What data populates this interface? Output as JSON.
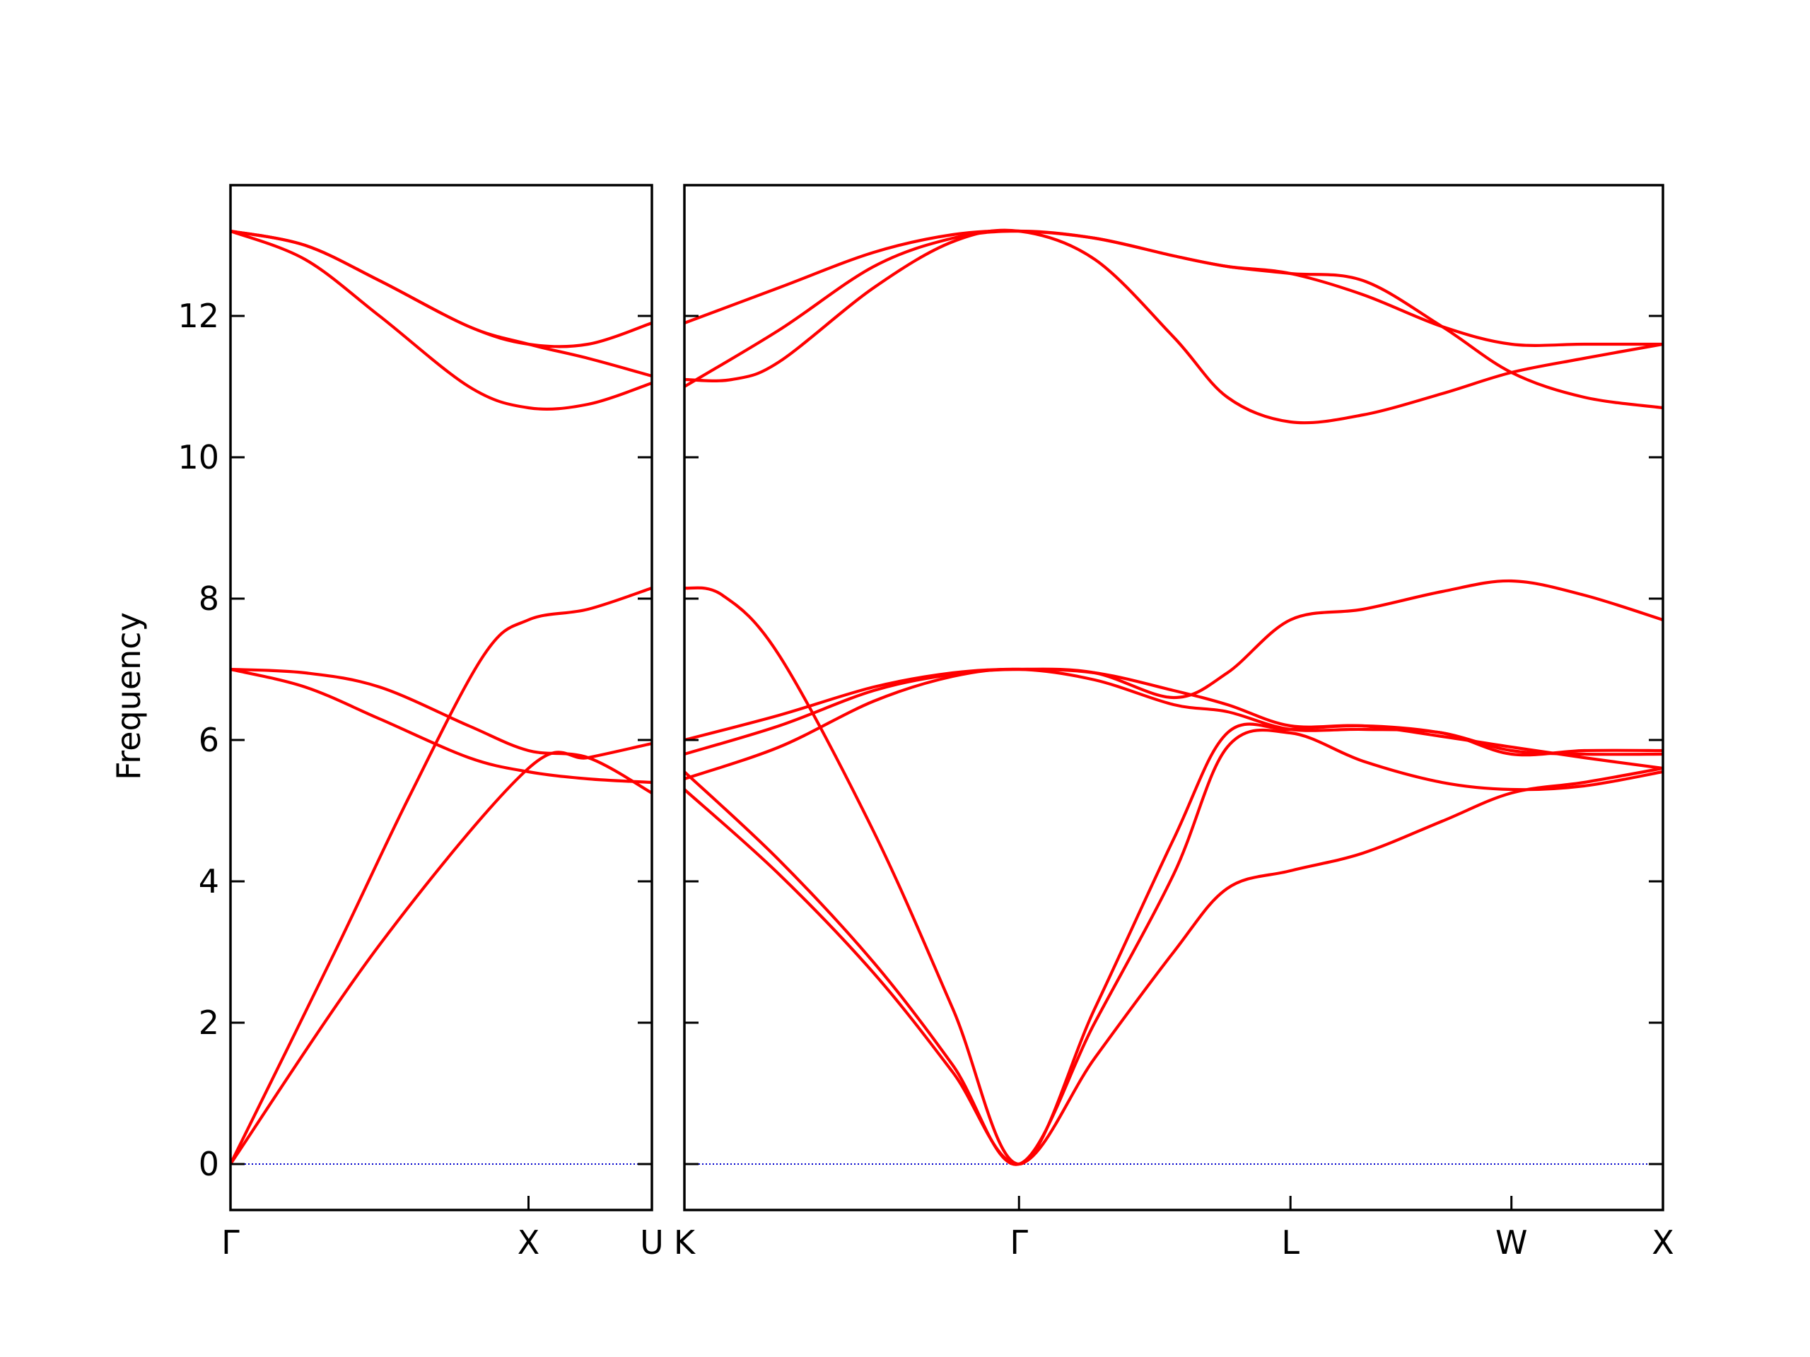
{
  "chart_data": {
    "type": "line",
    "title": "",
    "ylabel": "Frequency",
    "ylim": [
      -0.65,
      13.85
    ],
    "yticks": [
      0,
      2,
      4,
      6,
      8,
      10,
      12
    ],
    "grid": false,
    "legend": "none",
    "colors": {
      "band": "#ff0000",
      "zero_line": "#0000cc",
      "axes": "#000000"
    },
    "panels": [
      {
        "xrange": [
          0,
          1.414
        ],
        "ticks": [
          {
            "x": 0,
            "label": "Γ"
          },
          {
            "x": 1.0,
            "label": "X"
          },
          {
            "x": 1.414,
            "label": "U"
          }
        ],
        "bands": [
          {
            "x": [
              0,
              0.5,
              1.0,
              1.2,
              1.414
            ],
            "y": [
              0,
              3.1,
              5.6,
              5.75,
              5.95
            ]
          },
          {
            "x": [
              0,
              0.35,
              0.6,
              0.85,
              1.0,
              1.2,
              1.414
            ],
            "y": [
              0,
              3.0,
              5.2,
              7.2,
              7.7,
              7.85,
              8.15
            ]
          },
          {
            "x": [
              0,
              0.25,
              0.5,
              0.8,
              1.0,
              1.2,
              1.414
            ],
            "y": [
              7.0,
              6.75,
              6.3,
              5.75,
              5.55,
              5.45,
              5.4
            ]
          },
          {
            "x": [
              0,
              0.25,
              0.5,
              0.8,
              1.0,
              1.2,
              1.414
            ],
            "y": [
              7.0,
              6.95,
              6.75,
              6.2,
              5.85,
              5.75,
              5.25
            ]
          },
          {
            "x": [
              0,
              0.25,
              0.5,
              0.8,
              1.0,
              1.2,
              1.414
            ],
            "y": [
              13.2,
              12.8,
              12.0,
              11.0,
              10.7,
              10.75,
              11.05
            ]
          },
          {
            "x": [
              0,
              0.25,
              0.5,
              0.8,
              1.0,
              1.2,
              1.414
            ],
            "y": [
              13.2,
              13.0,
              12.5,
              11.85,
              11.6,
              11.6,
              11.9
            ]
          },
          {
            "x": [
              0,
              0.25,
              0.5,
              0.8,
              1.0,
              1.2,
              1.414
            ],
            "y": [
              13.2,
              13.0,
              12.5,
              11.85,
              11.6,
              11.4,
              11.15
            ]
          }
        ]
      },
      {
        "xrange": [
          0,
          3.1
        ],
        "ticks": [
          {
            "x": 0,
            "label": "K"
          },
          {
            "x": 1.06,
            "label": "Γ"
          },
          {
            "x": 1.92,
            "label": "L"
          },
          {
            "x": 2.62,
            "label": "W"
          },
          {
            "x": 3.1,
            "label": "X"
          }
        ],
        "bands": [
          {
            "x": [
              0,
              0.3,
              0.6,
              0.85,
              1.06,
              1.3,
              1.55,
              1.72,
              1.92,
              2.15,
              2.4,
              2.62,
              2.85,
              3.1
            ],
            "y": [
              5.3,
              4.1,
              2.7,
              1.3,
              0,
              1.5,
              3.0,
              3.9,
              4.15,
              4.4,
              4.85,
              5.25,
              5.4,
              5.6
            ]
          },
          {
            "x": [
              0,
              0.3,
              0.6,
              0.85,
              1.06,
              1.3,
              1.55,
              1.72,
              1.92,
              2.15,
              2.4,
              2.62,
              2.85,
              3.1
            ],
            "y": [
              5.55,
              4.3,
              2.85,
              1.4,
              0,
              2.0,
              4.1,
              5.9,
              6.1,
              5.7,
              5.4,
              5.3,
              5.35,
              5.55
            ]
          },
          {
            "x": [
              0,
              0.12,
              0.3,
              0.6,
              0.85,
              1.06,
              1.3,
              1.55,
              1.72,
              1.92,
              2.15,
              2.4,
              2.62,
              2.85,
              3.1
            ],
            "y": [
              8.15,
              8.05,
              7.2,
              4.7,
              2.2,
              0,
              2.2,
              4.6,
              6.1,
              6.15,
              6.2,
              6.1,
              5.85,
              5.8,
              5.8
            ]
          },
          {
            "x": [
              0,
              0.3,
              0.6,
              0.85,
              1.06,
              1.3,
              1.55,
              1.72,
              1.92,
              2.15,
              2.4,
              2.62,
              2.85,
              3.1
            ],
            "y": [
              5.45,
              5.9,
              6.55,
              6.9,
              7.0,
              6.85,
              6.5,
              6.4,
              6.15,
              6.15,
              6.1,
              5.8,
              5.85,
              5.85
            ]
          },
          {
            "x": [
              0,
              0.3,
              0.6,
              0.85,
              1.06,
              1.3,
              1.55,
              1.72,
              1.92,
              2.15,
              2.4,
              2.62,
              2.85,
              3.1
            ],
            "y": [
              5.8,
              6.2,
              6.7,
              6.93,
              7.0,
              6.95,
              6.6,
              6.95,
              7.7,
              7.85,
              8.1,
              8.25,
              8.05,
              7.7
            ]
          },
          {
            "x": [
              0,
              0.3,
              0.6,
              0.85,
              1.06,
              1.3,
              1.55,
              1.72,
              1.92,
              2.15,
              2.4,
              2.62,
              2.85,
              3.1
            ],
            "y": [
              6.0,
              6.35,
              6.75,
              6.95,
              7.0,
              6.95,
              6.7,
              6.5,
              6.2,
              6.2,
              6.05,
              5.9,
              5.75,
              5.6
            ]
          },
          {
            "x": [
              0,
              0.15,
              0.3,
              0.6,
              0.85,
              1.06,
              1.3,
              1.55,
              1.72,
              1.92,
              2.15,
              2.4,
              2.62,
              2.85,
              3.1
            ],
            "y": [
              11.1,
              11.1,
              11.35,
              12.4,
              13.05,
              13.2,
              12.8,
              11.7,
              10.85,
              10.5,
              10.6,
              10.9,
              11.2,
              11.4,
              11.6
            ]
          },
          {
            "x": [
              0,
              0.3,
              0.6,
              0.85,
              1.06,
              1.3,
              1.55,
              1.72,
              1.92,
              2.15,
              2.4,
              2.62,
              2.85,
              3.1
            ],
            "y": [
              11.0,
              11.8,
              12.7,
              13.1,
              13.2,
              13.1,
              12.85,
              12.7,
              12.6,
              12.5,
              11.85,
              11.2,
              10.85,
              10.7
            ]
          },
          {
            "x": [
              0,
              0.3,
              0.6,
              0.85,
              1.06,
              1.3,
              1.55,
              1.72,
              1.92,
              2.15,
              2.4,
              2.62,
              2.85,
              3.1
            ],
            "y": [
              11.9,
              12.4,
              12.9,
              13.15,
              13.2,
              13.1,
              12.85,
              12.7,
              12.6,
              12.3,
              11.85,
              11.6,
              11.6,
              11.6
            ]
          }
        ]
      }
    ]
  }
}
